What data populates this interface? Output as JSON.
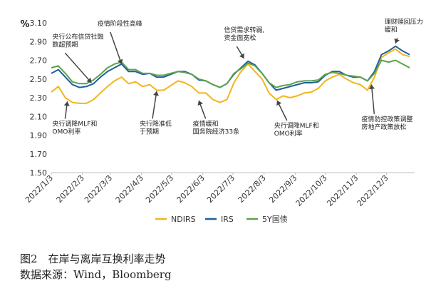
{
  "caption": {
    "figure_title": "图2　在岸与离岸互换利率走势",
    "source": "数据来源：Wind，Bloomberg"
  },
  "chart_data": {
    "type": "line",
    "ylabel": "%",
    "ylim": [
      1.5,
      3.1
    ],
    "yticks": [
      "3.10",
      "2.90",
      "2.70",
      "2.50",
      "2.30",
      "2.10",
      "1.90",
      "1.70",
      "1.50"
    ],
    "xticks": [
      "2022/1/3",
      "2022/2/3",
      "2022/3/3",
      "2022/4/3",
      "2022/5/3",
      "2022/6/3",
      "2022/7/3",
      "2022/8/3",
      "2022/9/3",
      "2022/10/3",
      "2022/11/3",
      "2022/12/3"
    ],
    "grid": false,
    "legend_position": "bottom",
    "x": [
      "2022-01-03",
      "2022-01-10",
      "2022-01-17",
      "2022-01-24",
      "2022-01-31",
      "2022-02-07",
      "2022-02-14",
      "2022-02-21",
      "2022-02-28",
      "2022-03-07",
      "2022-03-14",
      "2022-03-21",
      "2022-03-28",
      "2022-04-04",
      "2022-04-11",
      "2022-04-18",
      "2022-04-25",
      "2022-05-02",
      "2022-05-09",
      "2022-05-16",
      "2022-05-23",
      "2022-05-30",
      "2022-06-06",
      "2022-06-13",
      "2022-06-20",
      "2022-06-27",
      "2022-07-04",
      "2022-07-11",
      "2022-07-18",
      "2022-07-25",
      "2022-08-01",
      "2022-08-08",
      "2022-08-15",
      "2022-08-22",
      "2022-08-29",
      "2022-09-05",
      "2022-09-12",
      "2022-09-19",
      "2022-09-26",
      "2022-10-03",
      "2022-10-10",
      "2022-10-17",
      "2022-10-24",
      "2022-10-31",
      "2022-11-07",
      "2022-11-14",
      "2022-11-21",
      "2022-11-28",
      "2022-12-05",
      "2022-12-12",
      "2022-12-19",
      "2022-12-26"
    ],
    "series": [
      {
        "name": "NDIRS",
        "color": "#f2b51c",
        "values": [
          2.36,
          2.42,
          2.3,
          2.25,
          2.24,
          2.24,
          2.28,
          2.35,
          2.42,
          2.48,
          2.52,
          2.45,
          2.47,
          2.42,
          2.44,
          2.38,
          2.38,
          2.43,
          2.48,
          2.46,
          2.42,
          2.35,
          2.35,
          2.28,
          2.25,
          2.28,
          2.46,
          2.58,
          2.66,
          2.58,
          2.5,
          2.35,
          2.28,
          2.32,
          2.3,
          2.32,
          2.35,
          2.36,
          2.4,
          2.48,
          2.52,
          2.55,
          2.5,
          2.46,
          2.44,
          2.38,
          2.52,
          2.73,
          2.78,
          2.82,
          2.76,
          2.74
        ]
      },
      {
        "name": "IRS",
        "color": "#1f5f9e",
        "values": [
          2.56,
          2.6,
          2.52,
          2.44,
          2.41,
          2.42,
          2.45,
          2.52,
          2.58,
          2.62,
          2.66,
          2.58,
          2.58,
          2.55,
          2.56,
          2.52,
          2.52,
          2.55,
          2.58,
          2.58,
          2.55,
          2.49,
          2.48,
          2.44,
          2.41,
          2.45,
          2.55,
          2.62,
          2.69,
          2.65,
          2.56,
          2.46,
          2.38,
          2.4,
          2.42,
          2.44,
          2.46,
          2.46,
          2.47,
          2.54,
          2.58,
          2.58,
          2.54,
          2.52,
          2.52,
          2.48,
          2.58,
          2.76,
          2.8,
          2.85,
          2.8,
          2.76
        ]
      },
      {
        "name": "5Y国债",
        "color": "#5da24a",
        "values": [
          2.62,
          2.64,
          2.56,
          2.47,
          2.45,
          2.45,
          2.49,
          2.55,
          2.62,
          2.66,
          2.68,
          2.6,
          2.6,
          2.56,
          2.56,
          2.54,
          2.54,
          2.56,
          2.58,
          2.57,
          2.55,
          2.5,
          2.48,
          2.44,
          2.41,
          2.45,
          2.56,
          2.61,
          2.67,
          2.64,
          2.56,
          2.46,
          2.41,
          2.43,
          2.44,
          2.47,
          2.48,
          2.48,
          2.49,
          2.55,
          2.57,
          2.56,
          2.54,
          2.53,
          2.52,
          2.48,
          2.56,
          2.7,
          2.68,
          2.7,
          2.66,
          2.62
        ]
      }
    ],
    "annotations": [
      {
        "lines": [
          "央行公布信贷社融",
          "数超预期"
        ],
        "x": "2022-02-12",
        "y": 2.46,
        "tx": "2022-01-04",
        "ty": 2.93,
        "anchor": "start"
      },
      {
        "lines": [
          "疫情阶段性高峰"
        ],
        "x": "2022-03-14",
        "y": 2.66,
        "tx": "2022-02-18",
        "ty": 3.07,
        "anchor": "start"
      },
      {
        "lines": [
          "信贷需求转弱,",
          "资金面宽松"
        ],
        "x": "2022-07-14",
        "y": 2.72,
        "tx": "2022-06-24",
        "ty": 3.0,
        "anchor": "start"
      },
      {
        "lines": [
          "理财赎回压力",
          "缓和"
        ],
        "x": "2022-12-12",
        "y": 2.88,
        "tx": "2022-12-01",
        "ty": 3.09,
        "anchor": "start"
      },
      {
        "lines": [
          "央行调降MLF和",
          "OMO利率"
        ],
        "x": "2022-01-19",
        "y": 2.26,
        "tx": "2022-01-04",
        "ty": 2.0,
        "anchor": "start"
      },
      {
        "lines": [
          "央行降准低",
          "于预期"
        ],
        "x": "2022-04-18",
        "y": 2.37,
        "tx": "2022-04-01",
        "ty": 2.0,
        "anchor": "start"
      },
      {
        "lines": [
          "疫情缓和",
          "国务院经济33条"
        ],
        "x": "2022-05-30",
        "y": 2.27,
        "tx": "2022-05-24",
        "ty": 2.0,
        "anchor": "start"
      },
      {
        "lines": [
          "央行调降MLF和",
          "OMO利率"
        ],
        "x": "2022-08-16",
        "y": 2.27,
        "tx": "2022-08-13",
        "ty": 1.98,
        "anchor": "start"
      },
      {
        "lines": [
          "疫情防控政策调整",
          "房地产政策放松"
        ],
        "x": "2022-11-18",
        "y": 2.44,
        "tx": "2022-11-08",
        "ty": 2.05,
        "anchor": "start"
      }
    ]
  }
}
